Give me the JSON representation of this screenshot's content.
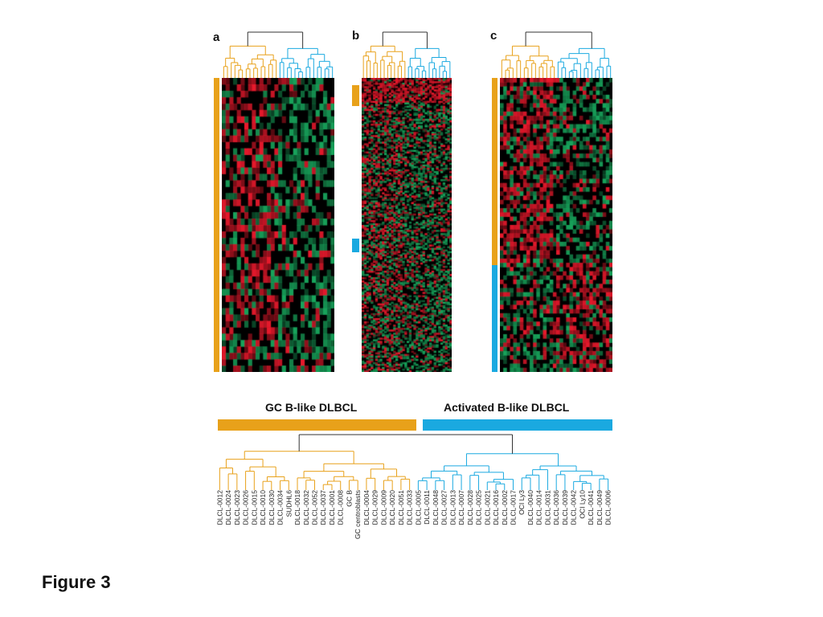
{
  "figure": {
    "caption": "Figure 3",
    "panels": [
      {
        "letter": "a",
        "side_bars": [
          "orange"
        ]
      },
      {
        "letter": "b",
        "side_bars": [
          "orange",
          "blue"
        ]
      },
      {
        "letter": "c",
        "side_bars": [
          "orange",
          "blue"
        ]
      }
    ],
    "groups": [
      {
        "label": "GC B-like DLBCL",
        "color": "#e8a11a"
      },
      {
        "label": "Activated B-like DLBCL",
        "color": "#1aa9e0"
      }
    ],
    "sample_labels_gc": [
      "DLCL-0012",
      "DLCL-0024",
      "DLCL-0023",
      "DLCL-0026",
      "DLCL-0015",
      "DLCL-0010",
      "DLCL-0030",
      "DLCL-0034",
      "SUDHL6",
      "DLCL-0018",
      "DLCL-0032",
      "DLCL-0052",
      "DLCL-0037",
      "DLCL-0001",
      "DLCL-0008",
      "GC B",
      "GC centroblasts",
      "DLCL-0004",
      "DLCL-0029",
      "DLCL-0009",
      "DLCL-0020",
      "DLCL-0051",
      "DLCL-0033"
    ],
    "sample_labels_abc": [
      "DLCL-0005",
      "DLCL-0011",
      "DLCL-0048",
      "DLCL-0027",
      "DLCL-0013",
      "DLCL-0007",
      "DLCL-0028",
      "DLCL-0025",
      "DLCL-0021",
      "DLCL-0016",
      "DLCL-0002",
      "DLCL-0017",
      "OCI Ly3",
      "DLCL-0040",
      "DLCL-0014",
      "DLCL-0031",
      "DLCL-0036",
      "DLCL-0039",
      "DLCL-0042",
      "OCI Ly10",
      "DLCL-0041",
      "DLCL-0049",
      "DLCL-0006"
    ],
    "colors": {
      "gc_orange": "#e8a11a",
      "abc_blue": "#1aa9e0",
      "heat_red": "#e8192c",
      "heat_green": "#18a55c",
      "heat_black": "#000000",
      "root_branch": "#333333"
    }
  }
}
